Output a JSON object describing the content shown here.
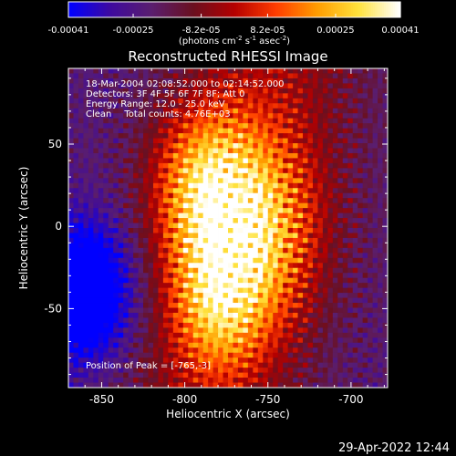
{
  "colorbar": {
    "tick_labels": [
      "-0.00041",
      "-0.00025",
      "-8.2e-05",
      "8.2e-05",
      "0.00025",
      "0.00041"
    ],
    "tick_values": [
      -0.00041,
      -0.00025,
      -8.2e-05,
      8.2e-05,
      0.00025,
      0.00041
    ],
    "range": [
      -0.00041,
      0.00041
    ],
    "units_main": "(photons cm",
    "units_sup1": "-2",
    "units_mid": " s",
    "units_sup2": "-1",
    "units_mid2": " asec",
    "units_sup3": "-2",
    "units_end": ")",
    "colormap": [
      "#0000ff",
      "#3e0a9e",
      "#5a1e6e",
      "#6a1020",
      "#b40000",
      "#ff3c00",
      "#ff9c00",
      "#ffe23c",
      "#ffffff"
    ]
  },
  "chart_data": {
    "type": "heatmap",
    "title": "Reconstructed RHESSI Image",
    "xlabel": "Heliocentric X (arcsec)",
    "ylabel": "Heliocentric Y (arcsec)",
    "xlim": [
      -870,
      -678
    ],
    "ylim": [
      -98,
      96
    ],
    "x_ticks": [
      -850,
      -800,
      -750,
      -700
    ],
    "y_ticks": [
      -50,
      0,
      50
    ],
    "x_tick_labels": [
      "-850",
      "-800",
      "-750",
      "-700"
    ],
    "y_tick_labels": [
      "-50",
      "0",
      "50"
    ],
    "peak_position": [
      -765,
      -3
    ],
    "value_range": [
      -0.00041,
      0.00041
    ]
  },
  "annotations": {
    "time_range": "18-Mar-2004 02:08:52.000 to 02:14:52.000",
    "detectors": "Detectors: 3F 4F 5F 6F 7F 8F; Att 0",
    "energy_range": "Energy Range: 12.0 - 25.0 keV",
    "clean_label": "Clean",
    "total_counts": "Total counts: 4.76E+03",
    "peak_label": "Position of Peak = [-765,-3]"
  },
  "footer": {
    "timestamp": "29-Apr-2022 12:44"
  }
}
